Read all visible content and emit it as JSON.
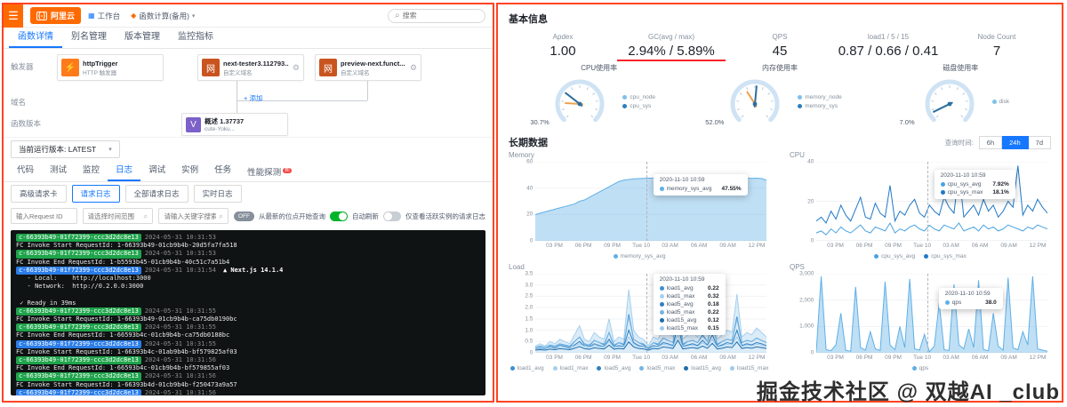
{
  "left": {
    "topbar": {
      "logo_mark": "(-)",
      "logo_text": "阿里云",
      "breadcrumbs": [
        {
          "glyph": "▦",
          "color": "#1677ff",
          "label": "工作台",
          "caret": false
        },
        {
          "glyph": "◆",
          "color": "#ff6a00",
          "label": "函数计算(备用)",
          "caret": true
        }
      ],
      "search_placeholder": "搜索"
    },
    "nav_tabs": {
      "items": [
        "函数详情",
        "别名管理",
        "版本管理",
        "监控指标"
      ],
      "active": 0
    },
    "flow": {
      "row_labels": [
        "触发器",
        "域名",
        "函数版本"
      ],
      "nodes": [
        {
          "glyph": "⚡",
          "color": "#ff7a1a",
          "title": "httpTrigger",
          "subtitle": "HTTP 触发器",
          "gear": false
        },
        {
          "glyph": "网",
          "color": "#c9541f",
          "title": "next-tester3.112793...",
          "subtitle": "自定义域名",
          "gear": true
        },
        {
          "glyph": "网",
          "color": "#c9541f",
          "title": "preview-next.funct...",
          "subtitle": "自定义域名",
          "gear": true
        },
        {
          "glyph": "V",
          "color": "#7b61c9",
          "title": "概述 1.37737",
          "subtitle": "cute-Yoku...",
          "gear": false
        }
      ],
      "add_link": "+ 添加"
    },
    "version_select": "当前运行版本: LATEST",
    "detail_tabs": {
      "items": [
        "代码",
        "测试",
        "监控",
        "日志",
        "调试",
        "实例",
        "任务",
        "性能探测"
      ],
      "active": 3,
      "badge": "新"
    },
    "log_buttons": {
      "items": [
        "高级请求卡",
        "请求日志",
        "全部请求日志",
        "实时日志"
      ],
      "active": 1
    },
    "filters": {
      "request_id_placeholder": "输入Request ID",
      "time_placeholder": "请选择时间范围",
      "keyword_placeholder": "请输入关键字搜索",
      "toggles": [
        {
          "type": "pill",
          "text": "OFF",
          "label": "从最新的位点开始查询"
        },
        {
          "type": "switch",
          "on": true,
          "label": "自动刷新"
        },
        {
          "type": "switch",
          "on": false,
          "label": "仅查看活跃实例的请求日志"
        }
      ]
    },
    "terminal": {
      "lines": [
        {
          "chip": "c-66393b49-01f72399-ccc3d2dc8e13",
          "color": "green",
          "time": "2024-05-31 10:31:53"
        },
        {
          "text": "FC Invoke Start RequestId: 1-66393b49-01cb9b4b-20d5fa7fa518"
        },
        {
          "chip": "c-66393b49-01f72399-ccc3d2dc8e13",
          "color": "green",
          "time": "2024-05-31 10:31:53"
        },
        {
          "text": "FC Invoke End RequestId: 1-b5593b45-01cb9b4b-40c51c7a51b4"
        },
        {
          "chip": "c-66393b49-01f72399-ccc3d2dc8e13",
          "color": "blue",
          "time": "2024-05-31 10:31:54",
          "suffix": "▲ Next.js 14.1.4"
        },
        {
          "text": "   - Local:    http://localhost:3000"
        },
        {
          "text": "   - Network:  http://0.2.0.0:3000"
        },
        {
          "text": ""
        },
        {
          "text": " ✓ Ready in 39ms"
        },
        {
          "chip": "c-66393b49-01f72399-ccc3d2dc8e13",
          "color": "green",
          "time": "2024-05-31 10:31:55"
        },
        {
          "text": "FC Invoke Start RequestId: 1-66393b49-01cb9b4b-ca75db0190bc"
        },
        {
          "chip": "c-66393b49-01f72399-ccc3d2dc8e13",
          "color": "green",
          "time": "2024-05-31 10:31:55"
        },
        {
          "text": "FC Invoke End RequestId: 1-66593b4c-01cb9b4b-ca75db0188bc"
        },
        {
          "chip": "c-66393b49-01f72399-ccc3d2dc8e13",
          "color": "blue",
          "time": "2024-05-31 10:31:55"
        },
        {
          "text": "FC Invoke Start RequestId: 1-66393b4c-01ab9b4b-bf579825af03"
        },
        {
          "chip": "c-66393b49-01f72399-ccc3d2dc8e13",
          "color": "green",
          "time": "2024-05-31 10:31:56"
        },
        {
          "text": "FC Invoke End RequestId: 1-66593b4c-01cb9b4b-bf579855af03"
        },
        {
          "chip": "c-66393b49-01f72399-ccc3d2dc8e13",
          "color": "green",
          "time": "2024-05-31 10:31:56"
        },
        {
          "text": "FC Invoke Start RequestId: 1-66393b4d-01cb9b4b-f250473a9a57"
        },
        {
          "chip": "c-66393b49-01f72399-ccc3d2dc8e13",
          "color": "blue",
          "time": "2024-05-31 10:31:56"
        }
      ]
    }
  },
  "right": {
    "title": "基本信息",
    "metrics": [
      {
        "label": "Apdex",
        "value": "1.00",
        "underline": false
      },
      {
        "label": "GC(avg / max)",
        "value": "2.94% / 5.89%",
        "underline": true
      },
      {
        "label": "QPS",
        "value": "45",
        "underline": false
      },
      {
        "label": "load1 / 5 / 15",
        "value": "0.87 / 0.66 / 0.41",
        "underline": false
      },
      {
        "label": "Node Count",
        "value": "7",
        "underline": false
      }
    ],
    "gauges": [
      {
        "title": "CPU使用率",
        "percent": 30.7,
        "percent2": 18,
        "display": "30.7%",
        "legend": [
          {
            "label": "cpu_node",
            "color": "#7fc0ea"
          },
          {
            "label": "cpu_sys",
            "color": "#2d7fc1"
          }
        ]
      },
      {
        "title": "内存使用率",
        "percent": 52.0,
        "percent2": 38,
        "display": "52.0%",
        "legend": [
          {
            "label": "memory_node",
            "color": "#7fc0ea"
          },
          {
            "label": "memory_sys",
            "color": "#2d7fc1"
          }
        ]
      },
      {
        "title": "磁盘使用率",
        "percent": 7.0,
        "percent2": null,
        "display": "7.0%",
        "legend": [
          {
            "label": "disk",
            "color": "#7fc0ea"
          }
        ]
      }
    ],
    "longterm": {
      "title": "长期数据",
      "range_label": "查询时间:",
      "ranges": [
        "6h",
        "24h",
        "7d"
      ],
      "active_range": 1
    },
    "watermark": "掘金技术社区 @ 双越AI _club"
  },
  "chart_data": [
    {
      "type": "area",
      "title": "Memory",
      "ylim": [
        0,
        60
      ],
      "yticks": [
        0,
        20,
        40,
        60
      ],
      "ytick_labels": [
        "0",
        "20",
        "40",
        "60"
      ],
      "x_labels": [
        "03 PM",
        "06 PM",
        "09 PM",
        "Tue 10",
        "03 AM",
        "06 AM",
        "09 AM",
        "12 PM"
      ],
      "series": [
        {
          "name": "memory_sys_avg",
          "color": "#5fb0e6",
          "fill": true,
          "values": [
            20,
            21,
            22,
            23,
            24,
            25,
            26,
            27,
            28,
            30,
            31,
            33,
            35,
            37,
            39,
            41,
            43,
            45,
            46,
            46.5,
            47,
            47.2,
            47.4,
            47.5,
            47.55,
            47.5,
            47.4,
            47.5,
            47.3,
            46,
            42,
            38,
            42,
            46,
            47,
            47.2,
            47.3,
            47.4,
            47.5,
            47.5,
            47.4,
            47.5,
            47.6,
            47.5,
            47.4,
            47.5,
            47.3,
            46
          ]
        }
      ],
      "tooltip": {
        "title": "2020-11-10 10:59",
        "x_frac": 0.48,
        "box": {
          "left": 0.51,
          "top": 0.16
        },
        "rows": [
          {
            "name": "memory_sys_avg",
            "value": "47.55%"
          }
        ]
      },
      "legend": [
        "memory_sys_avg"
      ]
    },
    {
      "type": "line",
      "title": "CPU",
      "ylim": [
        0,
        40
      ],
      "yticks": [
        0,
        20,
        40
      ],
      "ytick_labels": [
        "0",
        "20",
        "40"
      ],
      "x_labels": [
        "03 PM",
        "06 PM",
        "09 PM",
        "Tue 10",
        "03 AM",
        "06 AM",
        "09 AM",
        "12 PM"
      ],
      "series": [
        {
          "name": "cpu_sys_avg",
          "color": "#4aa3e0",
          "fill": false,
          "values": [
            4,
            5,
            3,
            6,
            4,
            7,
            5,
            4,
            6,
            8,
            5,
            4,
            7,
            6,
            5,
            9,
            4,
            6,
            5,
            7,
            8,
            6,
            5,
            7.92,
            6,
            5,
            8,
            7,
            6,
            9,
            5,
            6,
            7,
            5,
            8,
            6,
            7,
            5,
            6,
            8,
            7,
            6,
            5,
            7,
            6,
            8,
            7,
            6
          ]
        },
        {
          "name": "cpu_sys_max",
          "color": "#1f78c8",
          "fill": false,
          "values": [
            10,
            12,
            9,
            15,
            11,
            18,
            13,
            10,
            16,
            22,
            12,
            11,
            19,
            14,
            12,
            28,
            10,
            15,
            13,
            18,
            21,
            14,
            12,
            18.1,
            15,
            13,
            22,
            17,
            14,
            35,
            12,
            15,
            18,
            13,
            21,
            15,
            18,
            12,
            15,
            20,
            17,
            38,
            13,
            18,
            15,
            21,
            17,
            14
          ]
        }
      ],
      "tooltip": {
        "title": "2020-11-10 10:59",
        "x_frac": 0.48,
        "box": {
          "left": 0.51,
          "top": 0.1
        },
        "rows": [
          {
            "name": "cpu_sys_avg",
            "value": "7.92%"
          },
          {
            "name": "cpu_sys_max",
            "value": "18.1%"
          }
        ]
      },
      "legend": [
        "cpu_sys_avg",
        "cpu_sys_max"
      ]
    },
    {
      "type": "area",
      "title": "Load",
      "ylim": [
        0,
        3.5
      ],
      "yticks": [
        0,
        0.5,
        1,
        1.5,
        2,
        2.5,
        3,
        3.5
      ],
      "ytick_labels": [
        "0",
        "0.5",
        "1.0",
        "1.5",
        "2.0",
        "2.5",
        "3.0",
        "3.5"
      ],
      "x_labels": [
        "03 PM",
        "06 PM",
        "09 PM",
        "Tue 10",
        "03 AM",
        "06 AM",
        "09 AM",
        "12 PM"
      ],
      "series": [
        {
          "name": "load1_max",
          "color": "#a6d0ee",
          "fill": true,
          "values": [
            0.3,
            0.4,
            0.3,
            0.5,
            0.4,
            0.6,
            0.5,
            0.4,
            0.8,
            1.2,
            0.6,
            0.5,
            0.9,
            0.7,
            0.6,
            1.5,
            0.5,
            0.7,
            0.6,
            2.8,
            1.0,
            0.7,
            0.6,
            0.32,
            0.7,
            0.6,
            1.1,
            0.9,
            0.7,
            3.2,
            0.6,
            0.8,
            0.9,
            0.7,
            1.3,
            0.8,
            2.2,
            0.6,
            0.8,
            1.0,
            0.9,
            2.6,
            0.7,
            0.9,
            0.8,
            1.1,
            0.9,
            0.7
          ]
        },
        {
          "name": "load1_avg",
          "color": "#3d8fd1",
          "fill": false,
          "values": [
            0.2,
            0.25,
            0.2,
            0.3,
            0.25,
            0.35,
            0.3,
            0.25,
            0.5,
            0.7,
            0.35,
            0.3,
            0.55,
            0.45,
            0.35,
            0.9,
            0.3,
            0.45,
            0.35,
            1.7,
            0.6,
            0.45,
            0.35,
            0.22,
            0.45,
            0.35,
            0.65,
            0.55,
            0.45,
            1.9,
            0.35,
            0.5,
            0.55,
            0.45,
            0.8,
            0.5,
            1.3,
            0.35,
            0.5,
            0.6,
            0.55,
            1.6,
            0.45,
            0.55,
            0.5,
            0.65,
            0.55,
            0.45
          ]
        },
        {
          "name": "load5_max",
          "color": "#74b4e4",
          "fill": false,
          "values": [
            0.25,
            0.3,
            0.25,
            0.35,
            0.3,
            0.4,
            0.35,
            0.3,
            0.5,
            0.7,
            0.4,
            0.35,
            0.55,
            0.45,
            0.4,
            0.9,
            0.35,
            0.45,
            0.4,
            1.6,
            0.6,
            0.45,
            0.4,
            0.22,
            0.45,
            0.4,
            0.65,
            0.55,
            0.45,
            1.8,
            0.4,
            0.5,
            0.55,
            0.45,
            0.75,
            0.5,
            1.2,
            0.4,
            0.5,
            0.6,
            0.55,
            1.5,
            0.45,
            0.55,
            0.5,
            0.65,
            0.55,
            0.45
          ]
        },
        {
          "name": "load5_avg",
          "color": "#2e7fc0",
          "fill": false,
          "values": [
            0.18,
            0.2,
            0.18,
            0.25,
            0.2,
            0.28,
            0.25,
            0.2,
            0.35,
            0.5,
            0.28,
            0.25,
            0.4,
            0.32,
            0.28,
            0.6,
            0.25,
            0.32,
            0.28,
            1.0,
            0.45,
            0.32,
            0.28,
            0.18,
            0.32,
            0.28,
            0.45,
            0.4,
            0.32,
            1.2,
            0.28,
            0.35,
            0.4,
            0.32,
            0.55,
            0.35,
            0.8,
            0.28,
            0.35,
            0.45,
            0.4,
            1.0,
            0.32,
            0.4,
            0.35,
            0.45,
            0.4,
            0.32
          ]
        },
        {
          "name": "load15_max",
          "color": "#9ecbec",
          "fill": false,
          "values": [
            0.2,
            0.22,
            0.2,
            0.25,
            0.22,
            0.28,
            0.25,
            0.22,
            0.3,
            0.4,
            0.28,
            0.25,
            0.32,
            0.28,
            0.26,
            0.5,
            0.24,
            0.28,
            0.26,
            0.7,
            0.38,
            0.28,
            0.26,
            0.15,
            0.28,
            0.26,
            0.38,
            0.34,
            0.28,
            0.8,
            0.26,
            0.3,
            0.34,
            0.28,
            0.45,
            0.3,
            0.6,
            0.26,
            0.3,
            0.38,
            0.34,
            0.7,
            0.28,
            0.34,
            0.3,
            0.38,
            0.34,
            0.28
          ]
        },
        {
          "name": "load15_avg",
          "color": "#1e6cab",
          "fill": false,
          "values": [
            0.12,
            0.14,
            0.12,
            0.16,
            0.14,
            0.18,
            0.16,
            0.14,
            0.2,
            0.28,
            0.18,
            0.16,
            0.22,
            0.19,
            0.17,
            0.34,
            0.16,
            0.19,
            0.17,
            0.48,
            0.26,
            0.19,
            0.17,
            0.12,
            0.19,
            0.17,
            0.26,
            0.23,
            0.19,
            0.55,
            0.17,
            0.2,
            0.23,
            0.19,
            0.3,
            0.2,
            0.42,
            0.17,
            0.2,
            0.26,
            0.23,
            0.48,
            0.19,
            0.23,
            0.2,
            0.26,
            0.23,
            0.19
          ]
        }
      ],
      "tooltip": {
        "title": "2020-11-10 10:59",
        "x_frac": 0.48,
        "box": {
          "left": 0.51,
          "top": 0.0
        },
        "rows": [
          {
            "name": "load1_avg",
            "value": "0.22"
          },
          {
            "name": "load1_max",
            "value": "0.32"
          },
          {
            "name": "load5_avg",
            "value": "0.18"
          },
          {
            "name": "load5_max",
            "value": "0.22"
          },
          {
            "name": "load15_avg",
            "value": "0.12"
          },
          {
            "name": "load15_max",
            "value": "0.15"
          }
        ]
      },
      "legend": [
        "load1_avg",
        "load1_max",
        "load5_avg",
        "load5_max",
        "load15_avg",
        "load15_max"
      ]
    },
    {
      "type": "line",
      "title": "QPS",
      "ylim": [
        0,
        3000
      ],
      "yticks": [
        0,
        1000,
        2000,
        3000
      ],
      "ytick_labels": [
        "0",
        "1,000",
        "2,000",
        "3,000"
      ],
      "x_labels": [
        "03 PM",
        "06 PM",
        "09 PM",
        "Tue 10",
        "03 AM",
        "06 AM",
        "09 AM",
        "12 PM"
      ],
      "series": [
        {
          "name": "qps",
          "color": "#5fb0e6",
          "fill": true,
          "values": [
            45,
            2900,
            120,
            80,
            300,
            1500,
            90,
            60,
            2500,
            200,
            100,
            800,
            150,
            90,
            2700,
            300,
            120,
            1000,
            200,
            2800,
            150,
            100,
            700,
            38,
            250,
            1900,
            120,
            90,
            2600,
            300,
            150,
            900,
            200,
            2750,
            120,
            80,
            1500,
            250,
            100,
            2850,
            180,
            120,
            800,
            300,
            2900,
            150,
            100,
            60
          ]
        }
      ],
      "tooltip": {
        "title": "2020-11-10 10:59",
        "x_frac": 0.48,
        "box": {
          "left": 0.53,
          "top": 0.18
        },
        "rows": [
          {
            "name": "qps",
            "value": "38.0"
          }
        ]
      },
      "legend": [
        "qps"
      ]
    }
  ]
}
